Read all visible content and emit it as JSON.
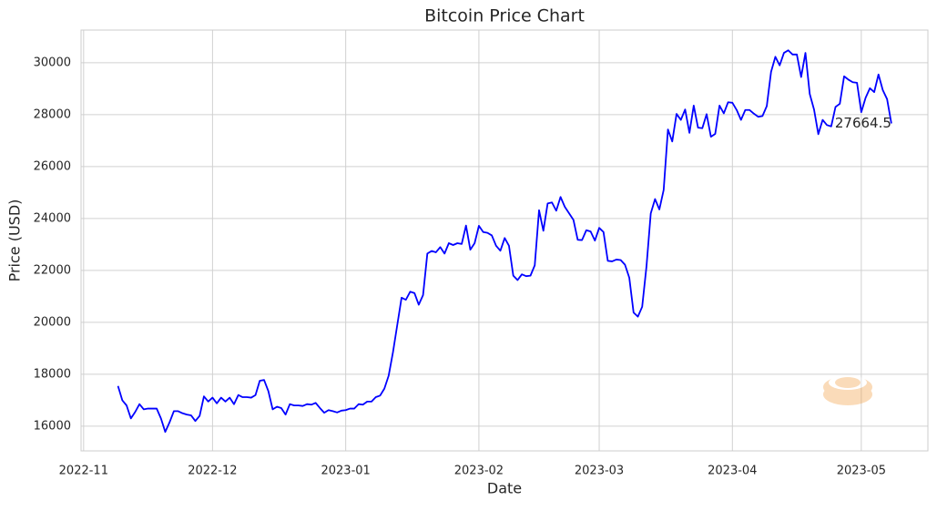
{
  "chart_data": {
    "type": "line",
    "title": "Bitcoin Price Chart",
    "x_label": "Date",
    "y_label": "Price (USD)",
    "categories": [
      null,
      null,
      null,
      null,
      null,
      null,
      null,
      null,
      null,
      null,
      null,
      null,
      null,
      null,
      null,
      null,
      null,
      null,
      null,
      null,
      null,
      null,
      null,
      null,
      null,
      null,
      null,
      null,
      null,
      null,
      null,
      null,
      null,
      null,
      null,
      null,
      null,
      null,
      null,
      null,
      null,
      null,
      null,
      null,
      null,
      null,
      null,
      null,
      null,
      null,
      null,
      null,
      null,
      null,
      null,
      null,
      null,
      null,
      null,
      null,
      null,
      null,
      null,
      null,
      null,
      null,
      null,
      null,
      null,
      null,
      null,
      null,
      null,
      null,
      null,
      null,
      null,
      null,
      null,
      null,
      null,
      null,
      null,
      null,
      null,
      null,
      null,
      null,
      null,
      null,
      null,
      null,
      null,
      null,
      null,
      null,
      null,
      null,
      null,
      null,
      null,
      null,
      null,
      null,
      null,
      null,
      null,
      null,
      null,
      null,
      null,
      null,
      null,
      null,
      null,
      null,
      null,
      null,
      null,
      null,
      null,
      null,
      null,
      null,
      null,
      null,
      null,
      null,
      null,
      null,
      null,
      null,
      null,
      null,
      null,
      null,
      null,
      null,
      null,
      null,
      null,
      null,
      null,
      null,
      null,
      null,
      null,
      null,
      null,
      null,
      null,
      null,
      null,
      null,
      null,
      null,
      null,
      null,
      null,
      null,
      null,
      null,
      null,
      null,
      null,
      null,
      null,
      null,
      null,
      null,
      null,
      null,
      null,
      null,
      null,
      null,
      null,
      null,
      null,
      null,
      null
    ],
    "series": [
      {
        "name": "Price",
        "color": "#0000ff",
        "values": [
          17550,
          17000,
          16800,
          16300,
          16550,
          16850,
          16650,
          16680,
          16680,
          16680,
          16300,
          15780,
          16150,
          16580,
          16580,
          16500,
          16450,
          16420,
          16200,
          16400,
          17150,
          16950,
          17100,
          16880,
          17100,
          16950,
          17100,
          16850,
          17200,
          17120,
          17120,
          17100,
          17200,
          17750,
          17780,
          17350,
          16650,
          16750,
          16700,
          16450,
          16850,
          16800,
          16800,
          16780,
          16850,
          16830,
          16900,
          16700,
          16520,
          16620,
          16580,
          16530,
          16600,
          16620,
          16680,
          16680,
          16850,
          16830,
          16950,
          16950,
          17120,
          17180,
          17450,
          17950,
          18850,
          19900,
          20950,
          20870,
          21180,
          21130,
          20680,
          21050,
          22650,
          22750,
          22700,
          22900,
          22650,
          23050,
          22980,
          23050,
          23020,
          23730,
          22800,
          23050,
          23720,
          23480,
          23450,
          23350,
          22950,
          22760,
          23250,
          22950,
          21800,
          21630,
          21850,
          21780,
          21800,
          22200,
          24320,
          23530,
          24580,
          24620,
          24300,
          24830,
          24450,
          24200,
          23950,
          23180,
          23170,
          23550,
          23500,
          23150,
          23640,
          23480,
          22370,
          22350,
          22420,
          22400,
          22220,
          21720,
          20380,
          20220,
          20600,
          22150,
          24200,
          24750,
          24350,
          25100,
          27430,
          26970,
          28030,
          27800,
          28200,
          27300,
          28350,
          27500,
          27480,
          28020,
          27150,
          27260,
          28350,
          28050,
          28480,
          28460,
          28180,
          27800,
          28180,
          28180,
          28040,
          27920,
          27950,
          28330,
          29650,
          30230,
          29900,
          30380,
          30480,
          30320,
          30320,
          29450,
          30380,
          28800,
          28200,
          27250,
          27800,
          27600,
          27550,
          28300,
          28420,
          29480,
          29350,
          29250,
          29230,
          28100,
          28650,
          29020,
          28870,
          29550,
          28950,
          28600,
          27664.5
        ]
      }
    ],
    "xlim": [
      -8.6,
      188.5
    ],
    "xticks": [
      {
        "value": -8,
        "label": "2022-11"
      },
      {
        "value": 22,
        "label": "2022-12"
      },
      {
        "value": 53,
        "label": "2023-01"
      },
      {
        "value": 84,
        "label": "2023-02"
      },
      {
        "value": 112,
        "label": "2023-03"
      },
      {
        "value": 143,
        "label": "2023-04"
      },
      {
        "value": 173,
        "label": "2023-05"
      }
    ],
    "ylim": [
      15050,
      31260
    ],
    "yticks": [
      16000,
      18000,
      20000,
      22000,
      24000,
      26000,
      28000,
      30000
    ],
    "grid": true
  }
}
